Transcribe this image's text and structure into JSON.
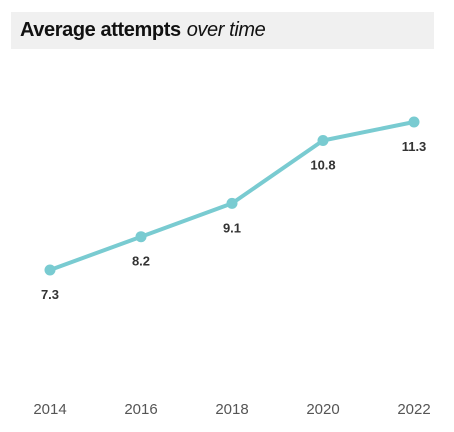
{
  "title": {
    "main": "Average attempts",
    "sub": "over time"
  },
  "colors": {
    "line": "#79cbd1",
    "label": "#333333",
    "axis_text": "#555555",
    "title_bg": "#f0f0f0"
  },
  "chart_data": {
    "type": "line",
    "x": [
      "2014",
      "2016",
      "2018",
      "2020",
      "2022"
    ],
    "series": [
      {
        "values": [
          7.3,
          8.2,
          9.1,
          10.8,
          11.3
        ]
      }
    ],
    "data_labels": [
      "7.3",
      "8.2",
      "9.1",
      "10.8",
      "11.3"
    ],
    "xlabel": "",
    "ylabel": "",
    "grid": false,
    "ylim": [
      5.0,
      12.0
    ]
  }
}
